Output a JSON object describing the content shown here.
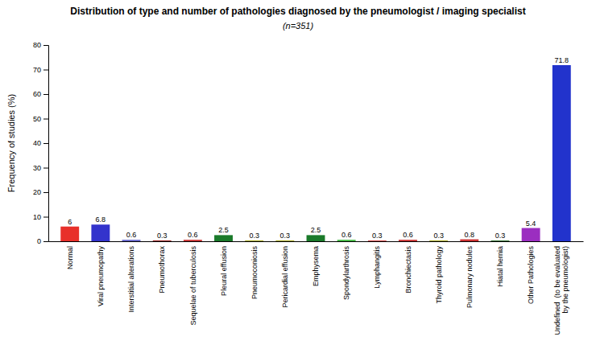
{
  "chart_data": {
    "type": "bar",
    "title": "Distribution of type and number of pathologies diagnosed by the pneumologist / imaging specialist",
    "subtitle": "(n=351)",
    "ylabel": "Frequency of studies (%)",
    "categories": [
      "Normal",
      "Viral pneumopathy",
      "Interstitial alterations",
      "Pneumothorax",
      "Sequelae of tuberculosis",
      "Pleural effusion",
      "Pneumoconiosis",
      "Pericardial effusion",
      "Emphysema",
      "Spondylarthrosis",
      "Lymphangitis",
      "Bronchiectasis",
      "Thyroid pathology",
      "Pulmonary nodules",
      "Hiatal hernia",
      "Other Pathologies",
      "Undefined  (to be evaluated\nby the pneumologist)"
    ],
    "values": [
      6,
      6.8,
      0.6,
      0.3,
      0.6,
      2.5,
      0.3,
      0.3,
      2.5,
      0.6,
      0.3,
      0.6,
      0.3,
      0.8,
      0.3,
      5.4,
      71.8
    ],
    "colors": [
      "#e8302a",
      "#3333cc",
      "#6666cc",
      "#8b0000",
      "#cc3333",
      "#1a7a2a",
      "#9b9b00",
      "#9b9b00",
      "#1a7a2a",
      "#44bb44",
      "#cc3333",
      "#cc3333",
      "#9b9b00",
      "#cc3333",
      "#226622",
      "#9b2ec0",
      "#2233cc"
    ],
    "ylim": [
      0,
      80
    ],
    "yticks": [
      0,
      10,
      20,
      30,
      40,
      50,
      60,
      70,
      80
    ],
    "grid": false,
    "data_labels": true
  }
}
